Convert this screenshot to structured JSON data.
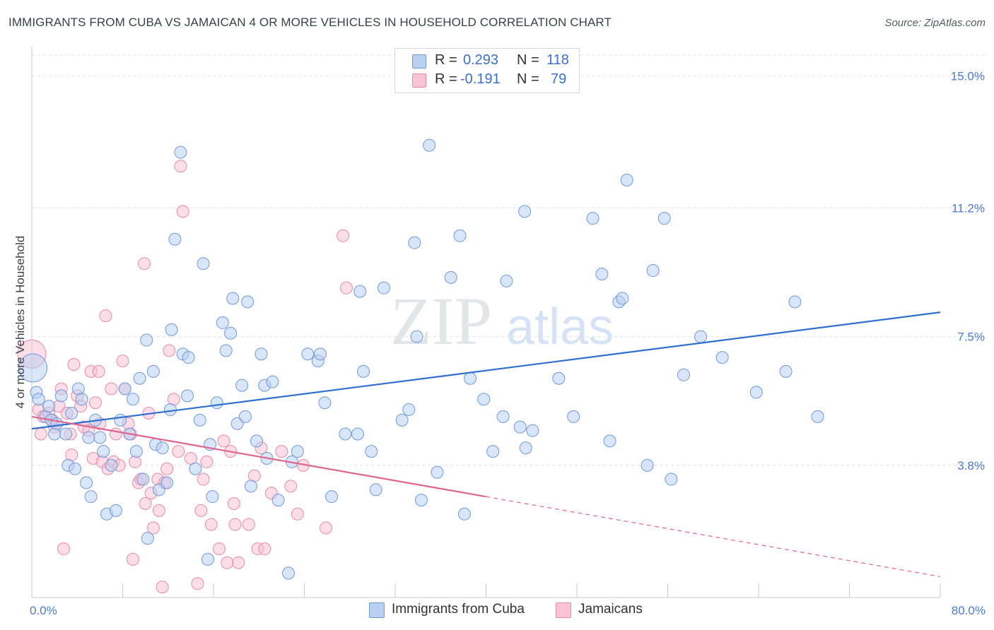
{
  "title": "IMMIGRANTS FROM CUBA VS JAMAICAN 4 OR MORE VEHICLES IN HOUSEHOLD CORRELATION CHART",
  "source": "Source: ZipAtlas.com",
  "watermark": {
    "zip": "ZIP",
    "atlas": "atlas"
  },
  "colors": {
    "cuba_fill": "#b9d0f3",
    "cuba_stroke": "#6f9ad8",
    "cuba_line": "#2f6fcf",
    "jam_fill": "#f8c3d3",
    "jam_stroke": "#e98aa8",
    "jam_line": "#e0648e",
    "grid": "#dde1e6",
    "tick_text": "#4a7bd0"
  },
  "legend": {
    "r_label": "R =",
    "n_label": "N =",
    "cuba": {
      "r": "0.293",
      "n": "118"
    },
    "jam": {
      "r": "-0.191",
      "n": "79"
    }
  },
  "chart_data": {
    "type": "scatter",
    "title": "IMMIGRANTS FROM CUBA VS JAMAICAN 4 OR MORE VEHICLES IN HOUSEHOLD CORRELATION CHART",
    "xlabel": "",
    "ylabel": "4 or more Vehicles in Household",
    "xlim": [
      0,
      80
    ],
    "ylim": [
      0,
      16
    ],
    "y_ticks": [
      3.8,
      7.5,
      11.2,
      15.0
    ],
    "y_tick_labels": [
      "3.8%",
      "7.5%",
      "11.2%",
      "15.0%"
    ],
    "x_tick_labels": [
      "0.0%",
      "80.0%"
    ],
    "grid": true,
    "legend_position": "top-center",
    "series": [
      {
        "name": "Immigrants from Cuba",
        "r": 0.293,
        "n": 118,
        "trend": {
          "x": [
            0,
            80
          ],
          "y": [
            4.85,
            8.2
          ]
        },
        "points": [
          [
            0.1,
            6.6
          ],
          [
            0.4,
            5.9
          ],
          [
            0.6,
            5.7
          ],
          [
            1.2,
            5.2
          ],
          [
            1.5,
            5.5
          ],
          [
            1.7,
            5.1
          ],
          [
            2.0,
            4.7
          ],
          [
            2.2,
            5.0
          ],
          [
            2.6,
            5.8
          ],
          [
            3.0,
            4.7
          ],
          [
            3.2,
            3.8
          ],
          [
            3.5,
            5.3
          ],
          [
            3.8,
            3.7
          ],
          [
            4.1,
            6.0
          ],
          [
            4.4,
            5.7
          ],
          [
            4.8,
            3.3
          ],
          [
            5.0,
            4.6
          ],
          [
            5.2,
            2.9
          ],
          [
            5.6,
            5.1
          ],
          [
            6.0,
            4.6
          ],
          [
            6.3,
            4.2
          ],
          [
            6.6,
            2.4
          ],
          [
            7.0,
            3.8
          ],
          [
            7.4,
            2.5
          ],
          [
            7.8,
            5.1
          ],
          [
            8.2,
            6.0
          ],
          [
            8.6,
            4.7
          ],
          [
            8.9,
            5.7
          ],
          [
            9.2,
            4.2
          ],
          [
            9.5,
            6.3
          ],
          [
            9.8,
            3.4
          ],
          [
            10.1,
            7.4
          ],
          [
            10.2,
            1.7
          ],
          [
            10.7,
            6.5
          ],
          [
            10.9,
            4.4
          ],
          [
            11.2,
            3.1
          ],
          [
            11.5,
            4.3
          ],
          [
            11.9,
            3.3
          ],
          [
            12.2,
            5.4
          ],
          [
            12.3,
            7.7
          ],
          [
            12.6,
            10.3
          ],
          [
            13.1,
            12.8
          ],
          [
            13.3,
            7.0
          ],
          [
            13.7,
            5.8
          ],
          [
            13.8,
            6.9
          ],
          [
            14.4,
            3.7
          ],
          [
            14.8,
            5.1
          ],
          [
            15.1,
            9.6
          ],
          [
            15.5,
            1.1
          ],
          [
            15.7,
            4.4
          ],
          [
            15.9,
            2.9
          ],
          [
            16.3,
            5.6
          ],
          [
            16.8,
            7.9
          ],
          [
            17.1,
            7.1
          ],
          [
            17.5,
            7.6
          ],
          [
            17.7,
            8.6
          ],
          [
            18.1,
            5.0
          ],
          [
            18.5,
            6.1
          ],
          [
            18.8,
            5.2
          ],
          [
            19.0,
            8.5
          ],
          [
            19.3,
            3.2
          ],
          [
            19.8,
            4.5
          ],
          [
            20.2,
            7.0
          ],
          [
            20.5,
            6.1
          ],
          [
            20.7,
            4.0
          ],
          [
            21.2,
            6.2
          ],
          [
            21.7,
            2.8
          ],
          [
            22.6,
            0.7
          ],
          [
            22.9,
            3.9
          ],
          [
            23.4,
            4.2
          ],
          [
            24.3,
            7.0
          ],
          [
            25.2,
            6.8
          ],
          [
            25.4,
            7.0
          ],
          [
            25.8,
            5.6
          ],
          [
            26.4,
            2.9
          ],
          [
            27.6,
            4.7
          ],
          [
            28.7,
            4.7
          ],
          [
            28.9,
            8.8
          ],
          [
            29.2,
            6.5
          ],
          [
            29.9,
            4.2
          ],
          [
            30.3,
            3.1
          ],
          [
            31.0,
            8.9
          ],
          [
            32.6,
            5.1
          ],
          [
            33.2,
            5.4
          ],
          [
            33.7,
            10.2
          ],
          [
            33.9,
            7.5
          ],
          [
            34.3,
            2.8
          ],
          [
            35.0,
            13.0
          ],
          [
            35.7,
            3.6
          ],
          [
            36.9,
            9.2
          ],
          [
            37.7,
            10.4
          ],
          [
            38.1,
            2.4
          ],
          [
            38.6,
            6.3
          ],
          [
            39.8,
            5.7
          ],
          [
            40.6,
            4.2
          ],
          [
            41.5,
            5.2
          ],
          [
            41.8,
            9.1
          ],
          [
            43.0,
            4.9
          ],
          [
            43.4,
            11.1
          ],
          [
            43.5,
            4.3
          ],
          [
            44.1,
            4.8
          ],
          [
            46.4,
            6.3
          ],
          [
            47.7,
            5.2
          ],
          [
            49.4,
            10.9
          ],
          [
            50.2,
            9.3
          ],
          [
            50.9,
            4.5
          ],
          [
            51.7,
            8.5
          ],
          [
            52.0,
            8.6
          ],
          [
            52.4,
            12.0
          ],
          [
            54.2,
            3.8
          ],
          [
            54.7,
            9.4
          ],
          [
            55.7,
            10.9
          ],
          [
            56.3,
            3.4
          ],
          [
            57.4,
            6.4
          ],
          [
            58.9,
            7.5
          ],
          [
            60.8,
            6.9
          ],
          [
            63.8,
            5.9
          ],
          [
            66.4,
            6.5
          ],
          [
            67.2,
            8.5
          ],
          [
            69.2,
            5.2
          ]
        ]
      },
      {
        "name": "Jamaicans",
        "r": -0.191,
        "n": 79,
        "trend": {
          "x": [
            0,
            40
          ],
          "y": [
            5.2,
            2.9
          ]
        },
        "trend_dashed": {
          "x": [
            40,
            80
          ],
          "y": [
            2.9,
            0.6
          ]
        },
        "points": [
          [
            0.0,
            7.0
          ],
          [
            0.6,
            5.4
          ],
          [
            0.8,
            4.7
          ],
          [
            1.0,
            5.2
          ],
          [
            1.5,
            5.3
          ],
          [
            1.8,
            5.1
          ],
          [
            2.0,
            4.9
          ],
          [
            2.4,
            5.5
          ],
          [
            2.6,
            6.0
          ],
          [
            2.8,
            1.4
          ],
          [
            3.1,
            5.3
          ],
          [
            3.4,
            4.7
          ],
          [
            3.5,
            4.1
          ],
          [
            3.7,
            6.7
          ],
          [
            4.0,
            5.8
          ],
          [
            4.3,
            5.5
          ],
          [
            4.6,
            4.9
          ],
          [
            5.0,
            4.8
          ],
          [
            5.2,
            6.5
          ],
          [
            5.4,
            4.0
          ],
          [
            5.6,
            5.6
          ],
          [
            5.9,
            6.5
          ],
          [
            6.0,
            5.0
          ],
          [
            6.2,
            3.9
          ],
          [
            6.5,
            8.1
          ],
          [
            6.7,
            3.7
          ],
          [
            7.0,
            6.0
          ],
          [
            7.2,
            3.9
          ],
          [
            7.4,
            4.7
          ],
          [
            7.7,
            3.8
          ],
          [
            8.0,
            6.8
          ],
          [
            8.2,
            6.0
          ],
          [
            8.5,
            5.0
          ],
          [
            8.7,
            4.7
          ],
          [
            8.9,
            1.1
          ],
          [
            9.1,
            3.9
          ],
          [
            9.4,
            3.3
          ],
          [
            9.6,
            3.4
          ],
          [
            9.9,
            9.6
          ],
          [
            10.0,
            2.7
          ],
          [
            10.3,
            5.3
          ],
          [
            10.5,
            3.0
          ],
          [
            10.7,
            2.0
          ],
          [
            11.1,
            3.4
          ],
          [
            11.2,
            2.5
          ],
          [
            11.5,
            0.3
          ],
          [
            11.7,
            3.3
          ],
          [
            11.9,
            3.7
          ],
          [
            12.1,
            7.1
          ],
          [
            12.5,
            5.7
          ],
          [
            12.9,
            4.2
          ],
          [
            13.1,
            12.4
          ],
          [
            13.3,
            11.1
          ],
          [
            14.0,
            4.0
          ],
          [
            14.6,
            0.4
          ],
          [
            14.9,
            2.5
          ],
          [
            15.1,
            3.4
          ],
          [
            15.4,
            3.9
          ],
          [
            15.8,
            2.1
          ],
          [
            16.5,
            1.4
          ],
          [
            16.9,
            4.5
          ],
          [
            17.2,
            1.0
          ],
          [
            17.5,
            4.2
          ],
          [
            17.8,
            2.7
          ],
          [
            17.9,
            2.1
          ],
          [
            18.2,
            1.0
          ],
          [
            19.1,
            2.1
          ],
          [
            19.6,
            3.5
          ],
          [
            19.9,
            1.4
          ],
          [
            20.2,
            4.3
          ],
          [
            20.5,
            1.4
          ],
          [
            21.1,
            3.0
          ],
          [
            22.0,
            4.2
          ],
          [
            22.8,
            3.2
          ],
          [
            23.4,
            2.4
          ],
          [
            23.9,
            3.8
          ],
          [
            25.9,
            2.0
          ],
          [
            27.4,
            10.4
          ],
          [
            27.7,
            8.9
          ]
        ]
      }
    ]
  }
}
